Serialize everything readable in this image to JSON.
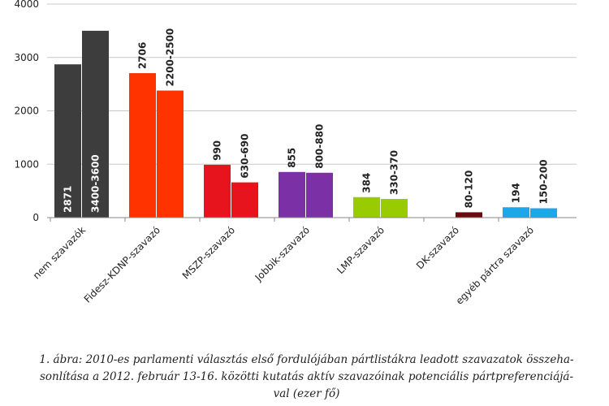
{
  "chart_data": {
    "type": "bar",
    "categories": [
      "nem szavazók",
      "Fidesz-KDNP-szavazó",
      "MSZP-szavazó",
      "Jobbik-szavazó",
      "LMP-szavazó",
      "DK-szavazó",
      "egyéb pártra szavazó"
    ],
    "series": [
      {
        "name": "2010",
        "values": [
          2871,
          2706,
          990,
          855,
          384,
          null,
          194
        ],
        "labels": [
          "2871",
          "2706",
          "990",
          "855",
          "384",
          "",
          "194"
        ]
      },
      {
        "name": "2012",
        "values": [
          3500,
          2380,
          660,
          840,
          350,
          100,
          175
        ],
        "labels": [
          "3400-3600",
          "2200-2500",
          "630-690",
          "800-880",
          "330-370",
          "80-120",
          "150-200"
        ]
      }
    ],
    "colors": [
      [
        "#3d3d3d",
        "#3d3d3d"
      ],
      [
        "#ff3300",
        "#ff3300"
      ],
      [
        "#e8141d",
        "#e8141d"
      ],
      [
        "#7c30a6",
        "#7c30a6"
      ],
      [
        "#99cc00",
        "#99cc00"
      ],
      [
        "#6b0a0a",
        "#6b0a0a"
      ],
      [
        "#1ea7e8",
        "#1ea7e8"
      ]
    ],
    "label_inside": [
      true,
      false,
      false,
      false,
      false,
      false,
      false
    ],
    "yticks": [
      0,
      1000,
      2000,
      3000,
      4000
    ],
    "ylim": [
      0,
      4000
    ],
    "title": "",
    "xlabel": "",
    "ylabel": ""
  },
  "caption": {
    "line1": "1. ábra: 2010-es parlamenti választás első fordulójában pártlistákra leadott szavazatok összeha-",
    "line2": "sonlítása a 2012. február 13-16. közötti kutatás aktív szavazóinak potenciális pártpreferenciájá-",
    "line3": "val (ezer fő)"
  }
}
